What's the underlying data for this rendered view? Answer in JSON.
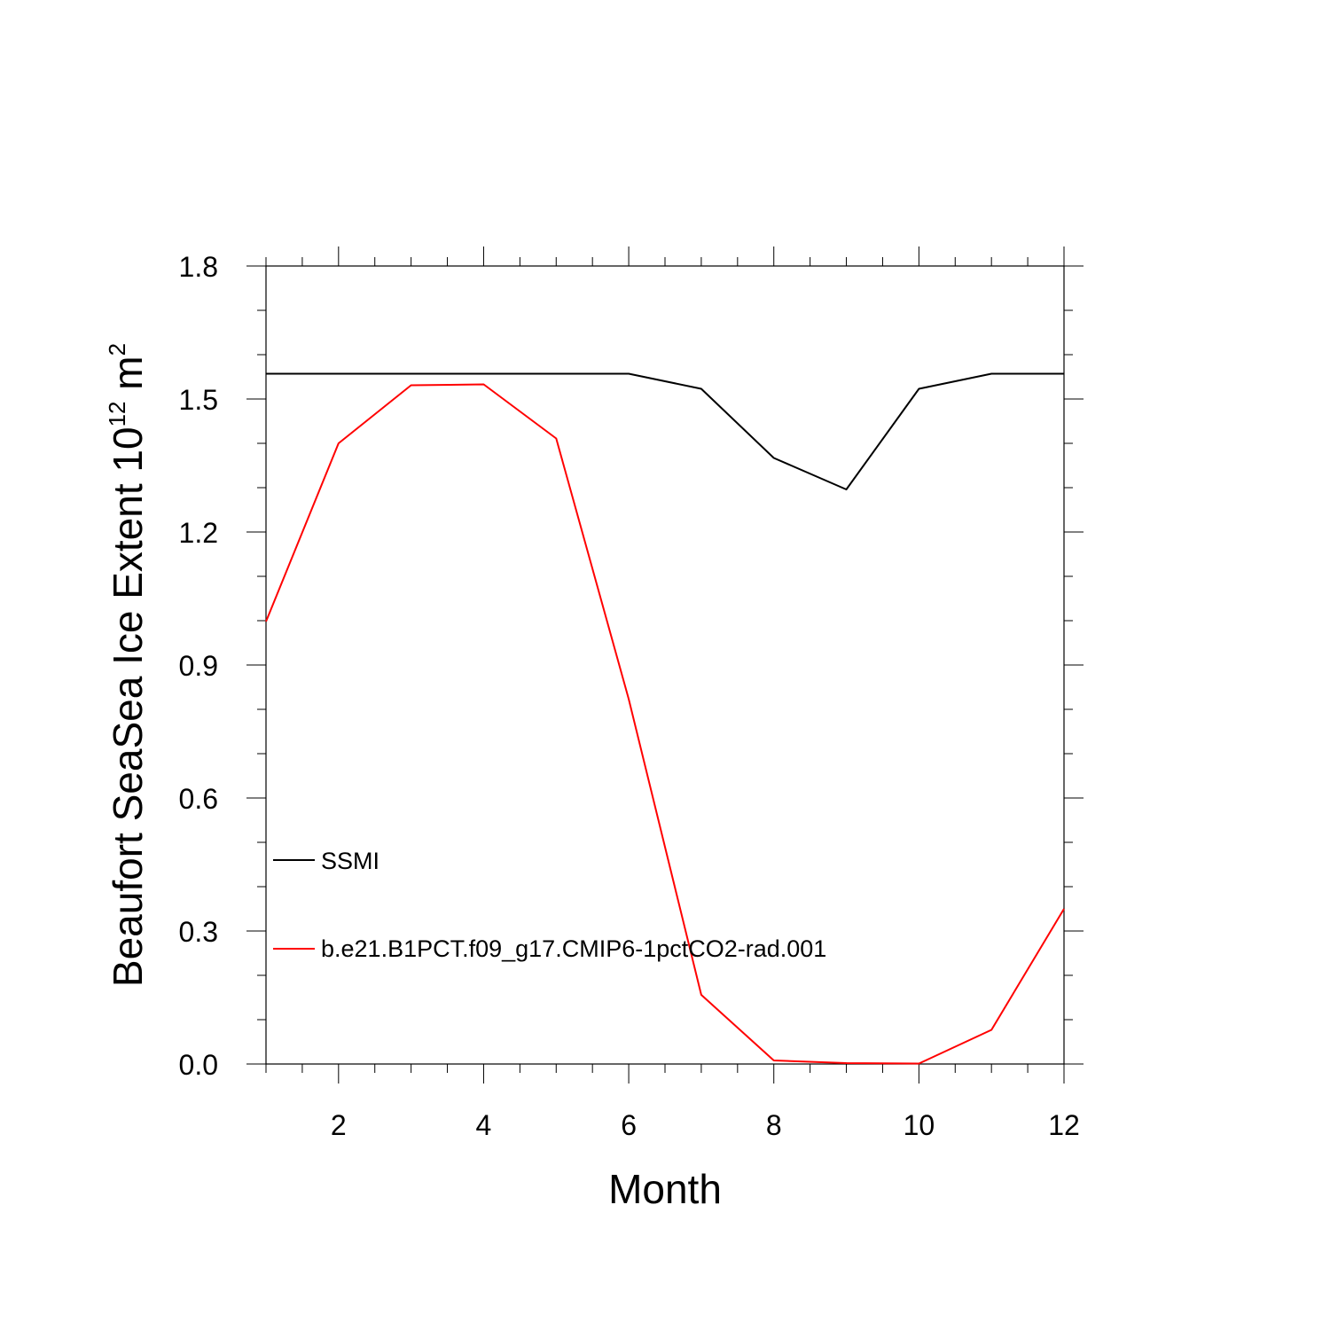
{
  "chart_data": {
    "type": "line",
    "xlabel": "Month",
    "ylabel": "Beaufort SeaSea Ice Extent 10",
    "ylabel_superscript": "12",
    "ylabel_unit": " m",
    "ylabel_unit_superscript": "2",
    "xlim": [
      1,
      12
    ],
    "ylim": [
      0.0,
      1.8
    ],
    "x_ticks": [
      2,
      4,
      6,
      8,
      10,
      12
    ],
    "x_tick_labels": [
      "2",
      "4",
      "6",
      "8",
      "10",
      "12"
    ],
    "y_ticks": [
      0.0,
      0.3,
      0.6,
      0.9,
      1.2,
      1.5,
      1.8
    ],
    "y_tick_labels": [
      "0.0",
      "0.3",
      "0.6",
      "0.9",
      "1.2",
      "1.5",
      "1.8"
    ],
    "x": [
      1,
      2,
      3,
      4,
      5,
      6,
      7,
      8,
      9,
      10,
      11,
      12
    ],
    "series": [
      {
        "name": "SSMI",
        "color": "#000000",
        "values": [
          1.557,
          1.557,
          1.557,
          1.557,
          1.557,
          1.557,
          1.523,
          1.367,
          1.296,
          1.523,
          1.557,
          1.557
        ]
      },
      {
        "name": "b.e21.B1PCT.f09_g17.CMIP6-1pctCO2-rad.001",
        "color": "#ff0000",
        "values": [
          0.998,
          1.4,
          1.531,
          1.533,
          1.411,
          0.823,
          0.156,
          0.008,
          0.002,
          0.001,
          0.077,
          0.35
        ]
      }
    ],
    "legend_position": "bottom-left",
    "grid": false
  }
}
